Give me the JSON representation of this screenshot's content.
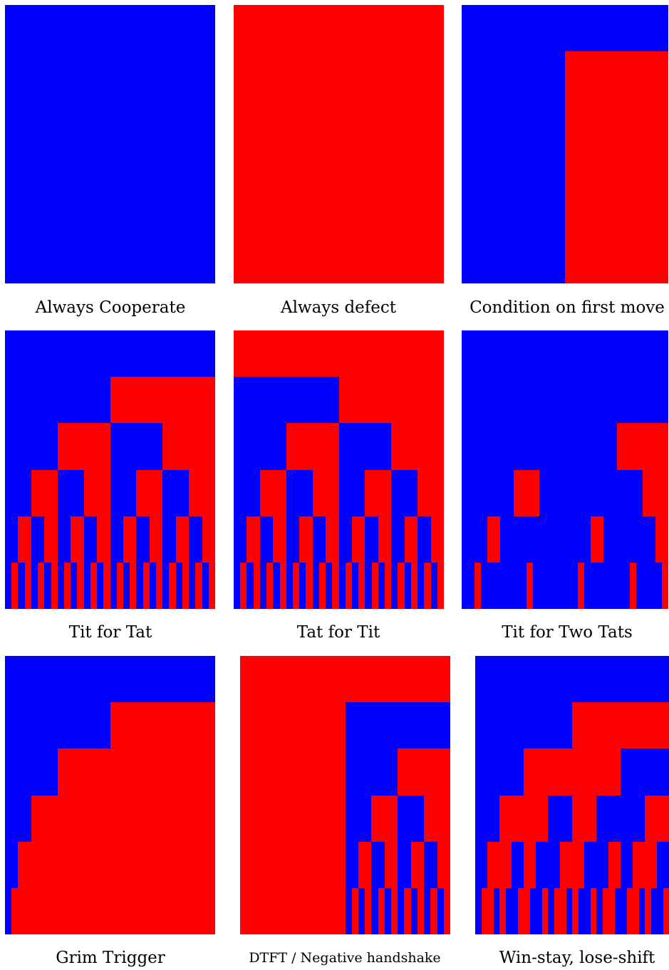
{
  "colors": {
    "cooperate": "#0000ff",
    "defect": "#ff0000"
  },
  "strategies": [
    {
      "name": "Always Cooperate",
      "rows": [
        "C",
        "CC",
        "CCCC",
        "CCCCCCCC",
        "CCCCCCCCCCCCCCCC",
        "CCCCCCCCCCCCCCCCCCCCCCCCCCCCCCCC"
      ]
    },
    {
      "name": "Always defect",
      "rows": [
        "D",
        "DD",
        "DDDD",
        "DDDDDDDD",
        "DDDDDDDDDDDDDDDD",
        "DDDDDDDDDDDDDDDDDDDDDDDDDDDDDDDD"
      ]
    },
    {
      "name": "Condition on first move",
      "rows": [
        "C",
        "CD",
        "CCDD",
        "CCCCDDDD",
        "CCCCCCCCDDDDDDDD",
        "CCCCCCCCCCCCCCCCDDDDDDDDDDDDDDDD"
      ]
    },
    {
      "name": "Tit for Tat",
      "rows": [
        "C",
        "CD",
        "CDCD",
        "CDCDCDCD",
        "CDCDCDCDCDCDCDCD",
        "CDCDCDCDCDCDCDCDCDCDCDCDCDCDCDCD"
      ]
    },
    {
      "name": "Tat for Tit",
      "rows": [
        "D",
        "CD",
        "CDCD",
        "CDCDCDCD",
        "CDCDCDCDCDCDCDCD",
        "CDCDCDCDCDCDCDCDCDCDCDCDCDCDCDCD"
      ]
    },
    {
      "name": "Tit for Two Tats",
      "rows": [
        "C",
        "CC",
        "CCCD",
        "CCDCCCCD",
        "CCDCCCCCCCDCCCCD",
        "CCDCCCCCCCDCCCCCCCDCCCCCCCDCCCCD"
      ]
    },
    {
      "name": "Grim Trigger",
      "rows": [
        "C",
        "CD",
        "CDDD",
        "CDDDDDDD",
        "CDDDDDDDDDDDDDDD",
        "CDDDDDDDDDDDDDDDDDDDDDDDDDDDDDDD"
      ]
    },
    {
      "name": "DTFT / Negative handshake",
      "rows": [
        "D",
        "DC",
        "DDCD",
        "DDDDCDCD",
        "DDDDDDDDCDCDCDCD",
        "DDDDDDDDDDDDDDDDCDCDCDCDCDCDCDCD"
      ]
    },
    {
      "name": "Win-stay, lose-shift",
      "rows": [
        "C",
        "CD",
        "CDDC",
        "CDDCDCCD",
        "CDDCDCCDDCCDCDDC",
        "CDDCDCCDDCCDCDDCDCCDCDDCCDDCDCCD"
      ]
    }
  ]
}
